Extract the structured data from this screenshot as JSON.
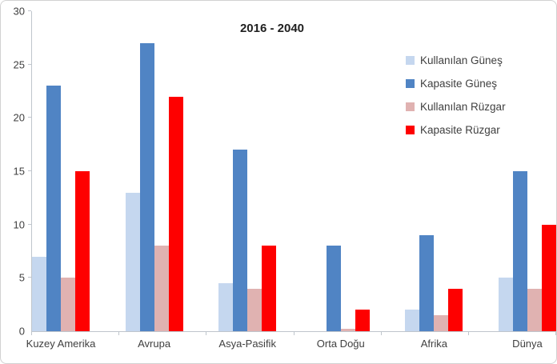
{
  "chart": {
    "title": "2016 - 2040"
  },
  "colors": {
    "light_blue": "#c5d7ef",
    "blue": "#5084c4",
    "pink": "#e0b2b1",
    "red": "#fe0000",
    "axis": "#bfc5cc",
    "text": "#3f3f3f"
  },
  "chart_data": {
    "type": "bar",
    "title": "2016 - 2040",
    "categories": [
      "Kuzey Amerika",
      "Avrupa",
      "Asya-Pasifik",
      "Orta Doğu",
      "Afrika",
      "Dünya"
    ],
    "series": [
      {
        "name": "Kullanılan Güneş",
        "color_key": "light_blue",
        "values": [
          7,
          13,
          4.5,
          0,
          2,
          5
        ]
      },
      {
        "name": "Kapasite Güneş",
        "color_key": "blue",
        "values": [
          23,
          27,
          17,
          8,
          9,
          15
        ]
      },
      {
        "name": "Kullanılan Rüzgar",
        "color_key": "pink",
        "values": [
          5,
          8,
          4,
          0.2,
          1.5,
          4
        ]
      },
      {
        "name": "Kapasite Rüzgar",
        "color_key": "red",
        "values": [
          15,
          22,
          8,
          2,
          4,
          10
        ]
      }
    ],
    "ylim": [
      0,
      30
    ],
    "yticks": [
      0,
      5,
      10,
      15,
      20,
      25,
      30
    ],
    "xlabel": "",
    "ylabel": "",
    "grid": false,
    "legend_position": "upper-right"
  }
}
